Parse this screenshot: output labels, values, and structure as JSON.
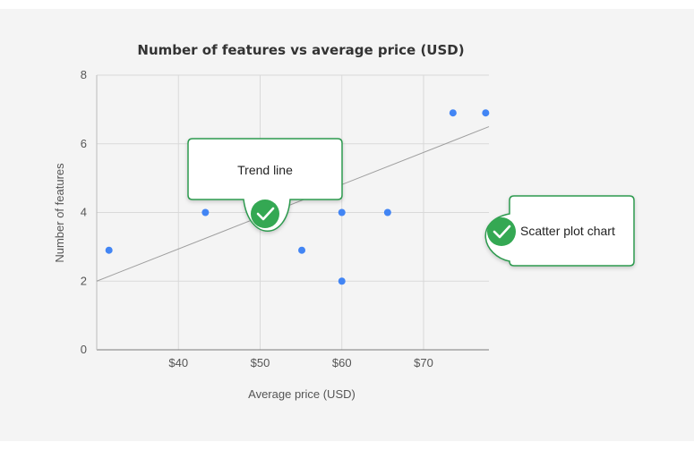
{
  "chart_data": {
    "type": "scatter",
    "title": "Number of features vs average price (USD)",
    "xlabel": "Average price (USD)",
    "ylabel": "Number of features",
    "xlim": [
      30,
      78
    ],
    "ylim": [
      0,
      8
    ],
    "x_ticks": [
      {
        "value": 40,
        "label": "$40"
      },
      {
        "value": 50,
        "label": "$50"
      },
      {
        "value": 60,
        "label": "$60"
      },
      {
        "value": 70,
        "label": "$70"
      }
    ],
    "y_ticks": [
      {
        "value": 0,
        "label": "0"
      },
      {
        "value": 2,
        "label": "2"
      },
      {
        "value": 4,
        "label": "4"
      },
      {
        "value": 6,
        "label": "6"
      },
      {
        "value": 8,
        "label": "8"
      }
    ],
    "grid": true,
    "series": [
      {
        "color": "#4285f4",
        "points": [
          {
            "x": 31.5,
            "y": 2.9
          },
          {
            "x": 43.3,
            "y": 4.0
          },
          {
            "x": 55.1,
            "y": 2.9
          },
          {
            "x": 60.0,
            "y": 4.0
          },
          {
            "x": 60.0,
            "y": 2.0
          },
          {
            "x": 65.6,
            "y": 4.0
          },
          {
            "x": 73.6,
            "y": 6.9
          },
          {
            "x": 77.6,
            "y": 6.9
          }
        ]
      }
    ],
    "trendline": {
      "x": [
        30,
        78
      ],
      "y": [
        2.0,
        6.5
      ],
      "color": "#9e9e9e"
    }
  },
  "callouts": {
    "trend_line": "Trend line",
    "scatter_plot_chart": "Scatter plot chart"
  },
  "colors": {
    "accent_green": "#34a853",
    "callout_border": "#2e9a4f",
    "point_blue": "#4285f4"
  }
}
